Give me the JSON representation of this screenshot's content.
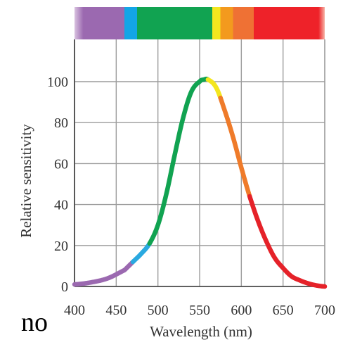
{
  "chart_data": {
    "type": "line",
    "title": "",
    "xlabel": "Wavelength (nm)",
    "ylabel": "Relative sensitivity",
    "xlim": [
      400,
      700
    ],
    "ylim": [
      0,
      100
    ],
    "x_ticks": [
      "400",
      "450",
      "500",
      "550",
      "600",
      "650",
      "700"
    ],
    "y_ticks": [
      "0",
      "20",
      "40",
      "60",
      "80",
      "100"
    ],
    "grid": true,
    "series": [
      {
        "x": [
          400,
          420,
          440,
          460,
          470,
          480,
          490,
          500,
          510,
          520,
          530,
          540,
          550,
          555,
          560,
          570,
          580,
          590,
          600,
          610,
          620,
          630,
          640,
          650,
          660,
          670,
          680,
          690,
          700
        ],
        "values": [
          1,
          2,
          4,
          8,
          12,
          16,
          21,
          30,
          45,
          64,
          82,
          95,
          100,
          101,
          101,
          97,
          86,
          73,
          58,
          44,
          32,
          22,
          14,
          9,
          5,
          3,
          1.5,
          0.5,
          0
        ]
      }
    ],
    "spectrum_bands": [
      {
        "from": 400,
        "to": 460,
        "color": "#9b69b0"
      },
      {
        "from": 460,
        "to": 475,
        "color": "#13a5e6"
      },
      {
        "from": 475,
        "to": 565,
        "color": "#11a351"
      },
      {
        "from": 565,
        "to": 575,
        "color": "#f4e61e"
      },
      {
        "from": 575,
        "to": 590,
        "color": "#f39a1e"
      },
      {
        "from": 590,
        "to": 615,
        "color": "#ef7134"
      },
      {
        "from": 615,
        "to": 700,
        "color": "#ee2229"
      }
    ],
    "line_colors": [
      {
        "from": 400,
        "to": 470,
        "color": "#9b69b0"
      },
      {
        "from": 470,
        "to": 490,
        "color": "#2aa9e0"
      },
      {
        "from": 490,
        "to": 560,
        "color": "#11a351"
      },
      {
        "from": 560,
        "to": 575,
        "color": "#f4e61e"
      },
      {
        "from": 575,
        "to": 610,
        "color": "#ef7b2a"
      },
      {
        "from": 610,
        "to": 700,
        "color": "#e52229"
      }
    ],
    "colors": {
      "grid": "#9c9c9c",
      "axis": "#4a4a4a",
      "text": "#333333"
    }
  },
  "stray_text": "no"
}
